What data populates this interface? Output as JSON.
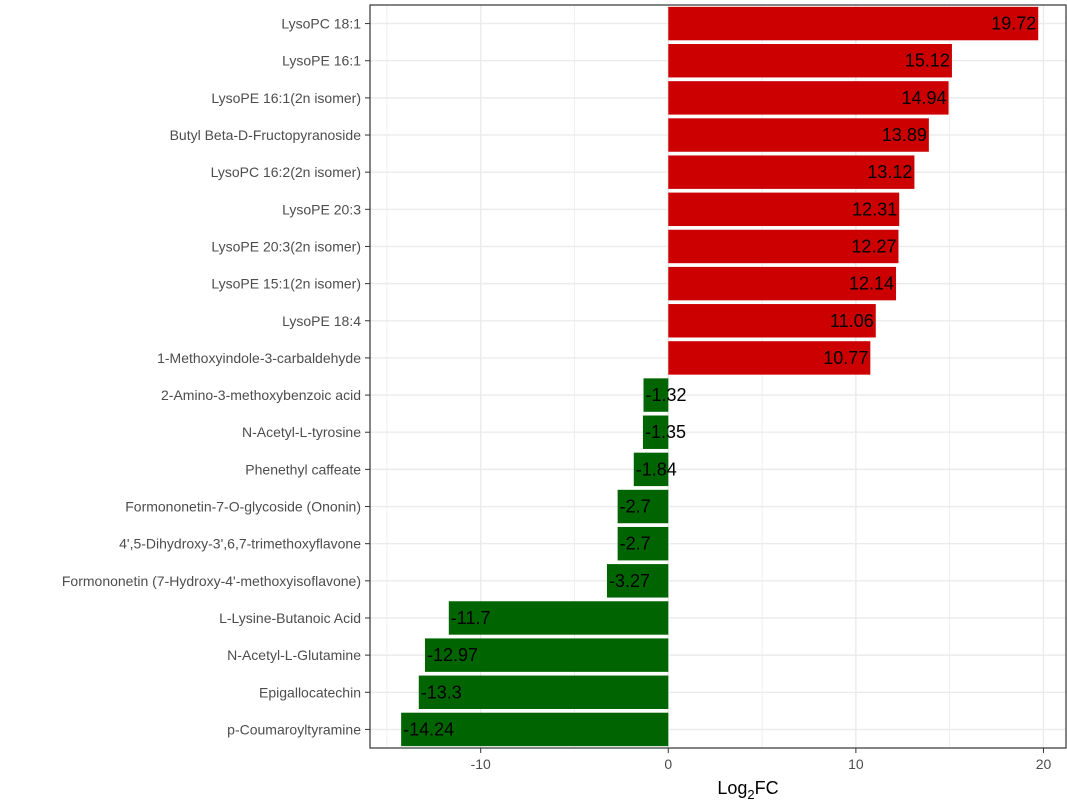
{
  "chart_data": {
    "type": "bar",
    "orientation": "horizontal",
    "categories": [
      "LysoPC 18:1",
      "LysoPE 16:1",
      "LysoPE 16:1(2n isomer)",
      "Butyl Beta-D-Fructopyranoside",
      "LysoPC 16:2(2n isomer)",
      "LysoPE 20:3",
      "LysoPE 20:3(2n isomer)",
      "LysoPE 15:1(2n isomer)",
      "LysoPE 18:4",
      "1-Methoxyindole-3-carbaldehyde",
      "2-Amino-3-methoxybenzoic acid",
      "N-Acetyl-L-tyrosine",
      "Phenethyl caffeate",
      "Formononetin-7-O-glycoside (Ononin)",
      "4',5-Dihydroxy-3',6,7-trimethoxyflavone",
      "Formononetin (7-Hydroxy-4'-methoxyisoflavone)",
      "L-Lysine-Butanoic Acid",
      "N-Acetyl-L-Glutamine",
      "Epigallocatechin",
      "p-Coumaroyltyramine"
    ],
    "values": [
      19.72,
      15.12,
      14.94,
      13.89,
      13.12,
      12.31,
      12.27,
      12.14,
      11.06,
      10.77,
      -1.32,
      -1.35,
      -1.84,
      -2.7,
      -2.7,
      -3.27,
      -11.7,
      -12.97,
      -13.3,
      -14.24
    ],
    "value_labels": [
      "19.72",
      "15.12",
      "14.94",
      "13.89",
      "13.12",
      "12.31",
      "12.27",
      "12.14",
      "11.06",
      "10.77",
      "-1.32",
      "-1.35",
      "-1.84",
      "-2.7",
      "-2.7",
      "-3.27",
      "-11.7",
      "-12.97",
      "-13.3",
      "-14.24"
    ],
    "xlabel": "Log",
    "xlabel_sub": "2",
    "xlabel_suffix": "FC",
    "xlim": [
      -15.9,
      21.2
    ],
    "xticks": [
      -10,
      0,
      10,
      20
    ],
    "xtick_labels": [
      "-10",
      "0",
      "10",
      "20"
    ],
    "grid": true,
    "colors": {
      "positive": "#cc0000",
      "negative": "#006400",
      "grid": "#ebebeb",
      "border": "#333333"
    }
  }
}
